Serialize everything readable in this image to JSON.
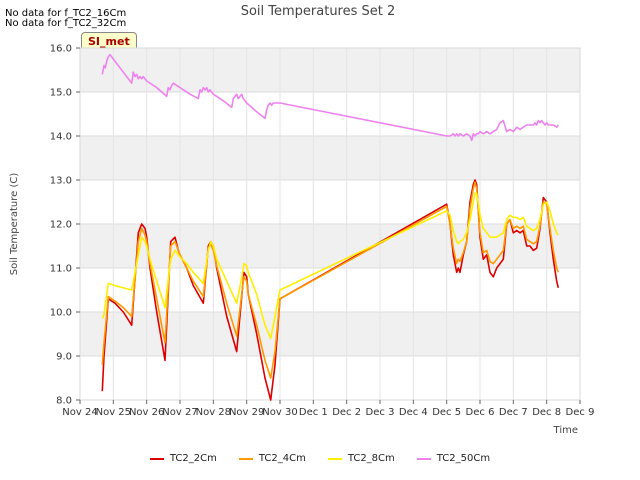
{
  "no_data_notes": [
    "No data for f_TC2_16Cm",
    "No data for f_TC2_32Cm"
  ],
  "site_badge": "SI_met",
  "chart_data": {
    "type": "line",
    "title": "Soil Temperatures Set 2",
    "xlabel": "Time",
    "ylabel": "Soil Temperature (C)",
    "ylim": [
      8.0,
      16.0
    ],
    "yticks": [
      "8.0",
      "9.0",
      "10.0",
      "11.0",
      "12.0",
      "13.0",
      "14.0",
      "15.0",
      "16.0"
    ],
    "xlim": [
      0,
      15
    ],
    "xticks": [
      "Nov 24",
      "Nov 25",
      "Nov 26",
      "Nov 27",
      "Nov 28",
      "Nov 29",
      "Nov 30",
      "Dec 1",
      "Dec 2",
      "Dec 3",
      "Dec 4",
      "Dec 5",
      "Dec 6",
      "Dec 7",
      "Dec 8",
      "Dec 9"
    ],
    "x_unit": "days since Nov 24",
    "grid": true,
    "legend_position": "bottom-center",
    "series": [
      {
        "name": "TC2_2Cm",
        "color": "#dd0000",
        "x": [
          0.67,
          0.72,
          0.85,
          1.05,
          1.3,
          1.55,
          1.75,
          1.85,
          1.95,
          2.0,
          2.1,
          2.3,
          2.55,
          2.72,
          2.85,
          2.95,
          3.0,
          3.2,
          3.4,
          3.7,
          3.85,
          3.92,
          4.0,
          4.1,
          4.4,
          4.7,
          4.88,
          4.92,
          5.0,
          5.05,
          5.3,
          5.55,
          5.72,
          5.85,
          5.95,
          6.0,
          11.0,
          11.1,
          11.2,
          11.3,
          11.35,
          11.4,
          11.5,
          11.6,
          11.7,
          11.8,
          11.85,
          11.9,
          12.0,
          12.1,
          12.2,
          12.3,
          12.4,
          12.5,
          12.6,
          12.7,
          12.8,
          12.9,
          13.0,
          13.1,
          13.2,
          13.3,
          13.4,
          13.5,
          13.6,
          13.7,
          13.8,
          13.9,
          14.0,
          14.1,
          14.2,
          14.3,
          14.35
        ],
        "y": [
          8.2,
          9.0,
          10.3,
          10.2,
          10.0,
          9.7,
          11.8,
          12.0,
          11.9,
          11.7,
          11.0,
          10.0,
          8.9,
          11.6,
          11.7,
          11.4,
          11.3,
          11.0,
          10.6,
          10.2,
          11.5,
          11.6,
          11.5,
          11.0,
          9.9,
          9.1,
          10.6,
          10.9,
          10.8,
          10.4,
          9.5,
          8.5,
          8.0,
          8.8,
          9.8,
          10.3,
          12.45,
          12.0,
          11.3,
          10.9,
          11.0,
          10.9,
          11.3,
          11.6,
          12.5,
          12.9,
          13.0,
          12.9,
          11.7,
          11.2,
          11.3,
          10.9,
          10.8,
          11.0,
          11.1,
          11.2,
          12.0,
          12.1,
          11.8,
          11.85,
          11.8,
          11.85,
          11.5,
          11.5,
          11.4,
          11.45,
          11.9,
          12.6,
          12.5,
          11.8,
          11.2,
          10.7,
          10.55
        ]
      },
      {
        "name": "TC2_4Cm",
        "color": "#ff9900",
        "x": [
          0.67,
          0.72,
          0.85,
          1.05,
          1.3,
          1.55,
          1.75,
          1.85,
          1.95,
          2.0,
          2.1,
          2.3,
          2.55,
          2.72,
          2.85,
          2.95,
          3.0,
          3.2,
          3.4,
          3.7,
          3.85,
          3.92,
          4.0,
          4.1,
          4.4,
          4.7,
          4.88,
          4.92,
          5.0,
          5.05,
          5.3,
          5.55,
          5.72,
          5.85,
          5.95,
          6.0,
          11.0,
          11.1,
          11.2,
          11.3,
          11.35,
          11.4,
          11.5,
          11.6,
          11.7,
          11.8,
          11.85,
          11.9,
          12.0,
          12.1,
          12.2,
          12.3,
          12.4,
          12.5,
          12.6,
          12.7,
          12.8,
          12.9,
          13.0,
          13.1,
          13.2,
          13.3,
          13.4,
          13.5,
          13.6,
          13.7,
          13.8,
          13.9,
          14.0,
          14.1,
          14.2,
          14.3,
          14.35
        ],
        "y": [
          8.8,
          9.3,
          10.35,
          10.25,
          10.1,
          9.9,
          11.6,
          11.9,
          11.75,
          11.6,
          11.1,
          10.3,
          9.3,
          11.5,
          11.6,
          11.4,
          11.3,
          11.0,
          10.7,
          10.35,
          11.45,
          11.55,
          11.4,
          11.05,
          10.2,
          9.45,
          10.6,
          10.8,
          10.7,
          10.4,
          9.7,
          8.9,
          8.5,
          9.1,
          9.9,
          10.3,
          12.4,
          12.0,
          11.45,
          11.1,
          11.2,
          11.15,
          11.35,
          11.6,
          12.35,
          12.8,
          12.95,
          12.8,
          11.8,
          11.35,
          11.4,
          11.15,
          11.1,
          11.2,
          11.3,
          11.4,
          12.0,
          12.1,
          11.9,
          11.95,
          11.9,
          11.95,
          11.65,
          11.6,
          11.55,
          11.6,
          11.95,
          12.5,
          12.45,
          11.9,
          11.4,
          11.0,
          10.9
        ]
      },
      {
        "name": "TC2_8Cm",
        "color": "#ffee00",
        "x": [
          0.67,
          0.72,
          0.85,
          1.05,
          1.3,
          1.55,
          1.75,
          1.85,
          1.95,
          2.0,
          2.1,
          2.3,
          2.55,
          2.72,
          2.85,
          2.95,
          3.0,
          3.2,
          3.4,
          3.7,
          3.85,
          3.92,
          4.0,
          4.1,
          4.4,
          4.7,
          4.88,
          4.92,
          5.0,
          5.05,
          5.3,
          5.55,
          5.72,
          5.85,
          5.95,
          6.0,
          11.0,
          11.1,
          11.2,
          11.3,
          11.35,
          11.4,
          11.5,
          11.6,
          11.7,
          11.8,
          11.85,
          11.9,
          12.0,
          12.1,
          12.2,
          12.3,
          12.4,
          12.5,
          12.6,
          12.7,
          12.8,
          12.9,
          13.0,
          13.1,
          13.2,
          13.3,
          13.4,
          13.5,
          13.6,
          13.7,
          13.8,
          13.9,
          14.0,
          14.1,
          14.2,
          14.3,
          14.35
        ],
        "y": [
          9.85,
          9.95,
          10.65,
          10.6,
          10.55,
          10.5,
          11.3,
          11.7,
          11.6,
          11.5,
          11.2,
          10.7,
          10.1,
          11.2,
          11.4,
          11.3,
          11.25,
          11.1,
          10.9,
          10.65,
          11.4,
          11.6,
          11.5,
          11.2,
          10.7,
          10.2,
          10.9,
          11.1,
          11.05,
          10.9,
          10.4,
          9.7,
          9.4,
          9.9,
          10.3,
          10.5,
          12.3,
          12.2,
          11.85,
          11.6,
          11.55,
          11.6,
          11.65,
          11.8,
          12.1,
          12.5,
          12.7,
          12.7,
          12.2,
          11.9,
          11.8,
          11.7,
          11.7,
          11.7,
          11.75,
          11.8,
          12.1,
          12.2,
          12.15,
          12.15,
          12.1,
          12.15,
          11.95,
          11.9,
          11.85,
          11.9,
          12.1,
          12.45,
          12.5,
          12.3,
          12.0,
          11.8,
          11.75
        ]
      },
      {
        "name": "TC2_50Cm",
        "color": "#ee82ee",
        "x": [
          0.67,
          0.72,
          0.76,
          0.8,
          0.85,
          0.9,
          1.0,
          1.3,
          1.55,
          1.6,
          1.65,
          1.7,
          1.75,
          1.8,
          1.85,
          1.9,
          2.0,
          2.3,
          2.6,
          2.65,
          2.7,
          2.75,
          2.8,
          2.9,
          3.0,
          3.3,
          3.55,
          3.6,
          3.65,
          3.7,
          3.75,
          3.8,
          3.85,
          3.9,
          4.0,
          4.3,
          4.55,
          4.6,
          4.65,
          4.7,
          4.75,
          4.8,
          4.85,
          4.9,
          5.0,
          5.3,
          5.55,
          5.6,
          5.65,
          5.7,
          5.75,
          5.8,
          5.9,
          6.0,
          11.0,
          11.1,
          11.2,
          11.25,
          11.3,
          11.35,
          11.4,
          11.5,
          11.6,
          11.7,
          11.75,
          11.8,
          11.85,
          11.9,
          11.95,
          12.0,
          12.1,
          12.2,
          12.3,
          12.4,
          12.5,
          12.6,
          12.7,
          12.8,
          12.9,
          13.0,
          13.1,
          13.2,
          13.3,
          13.4,
          13.5,
          13.6,
          13.65,
          13.7,
          13.75,
          13.8,
          13.85,
          13.9,
          13.95,
          14.0,
          14.05,
          14.1,
          14.2,
          14.3,
          14.35
        ],
        "y": [
          15.4,
          15.6,
          15.55,
          15.7,
          15.8,
          15.85,
          15.75,
          15.45,
          15.2,
          15.45,
          15.35,
          15.4,
          15.3,
          15.35,
          15.3,
          15.35,
          15.25,
          15.1,
          14.9,
          15.1,
          15.05,
          15.15,
          15.2,
          15.15,
          15.1,
          14.95,
          14.85,
          15.05,
          15.0,
          15.1,
          15.05,
          15.1,
          15.0,
          15.05,
          14.95,
          14.8,
          14.65,
          14.85,
          14.9,
          14.95,
          14.85,
          14.9,
          14.95,
          14.85,
          14.75,
          14.55,
          14.4,
          14.6,
          14.7,
          14.75,
          14.7,
          14.75,
          14.75,
          14.75,
          14.0,
          14.0,
          14.05,
          14.0,
          14.05,
          14.0,
          14.05,
          14.0,
          14.05,
          14.0,
          13.9,
          14.05,
          14.0,
          14.05,
          14.05,
          14.1,
          14.05,
          14.1,
          14.05,
          14.1,
          14.15,
          14.3,
          14.35,
          14.1,
          14.15,
          14.1,
          14.2,
          14.15,
          14.2,
          14.25,
          14.25,
          14.25,
          14.3,
          14.25,
          14.35,
          14.3,
          14.35,
          14.3,
          14.25,
          14.3,
          14.25,
          14.25,
          14.25,
          14.2,
          14.25
        ]
      }
    ]
  }
}
